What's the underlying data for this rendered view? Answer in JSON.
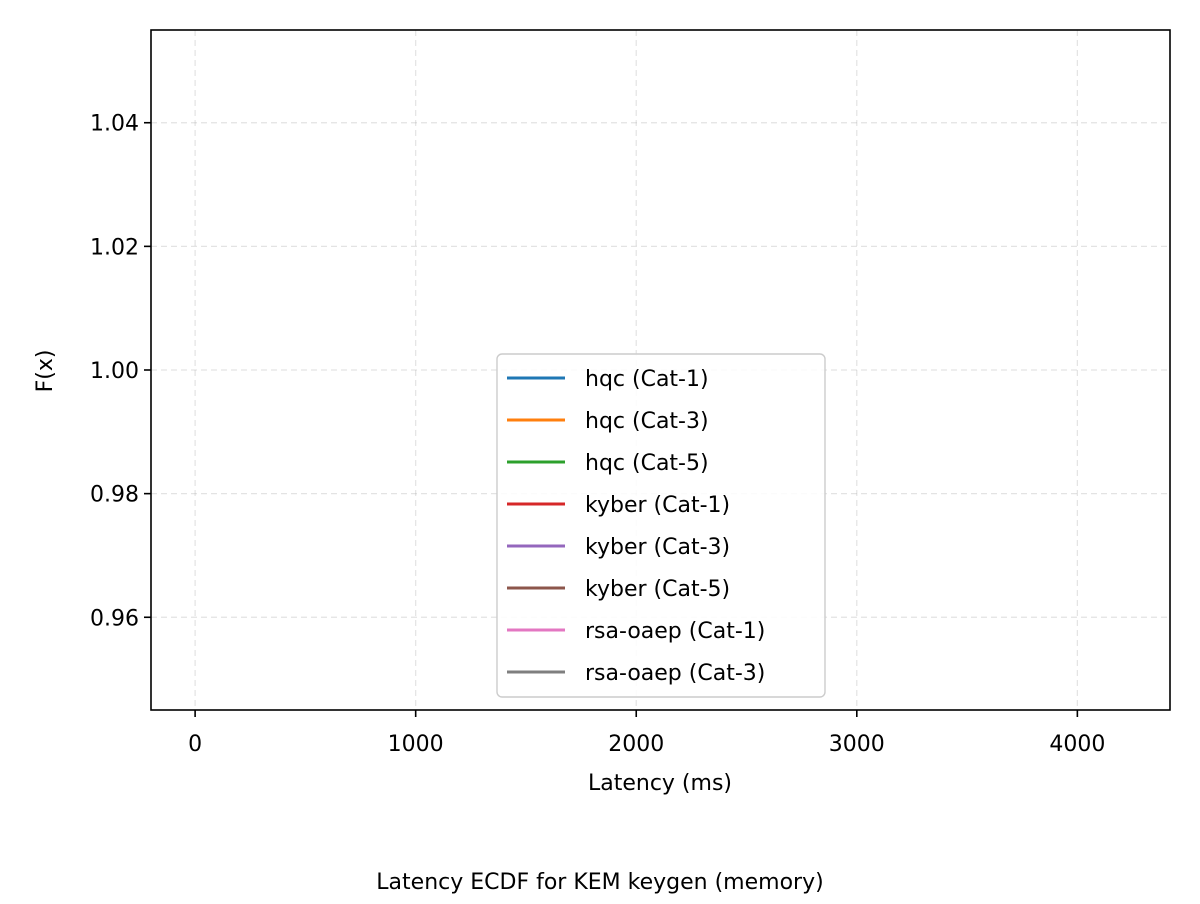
{
  "chart_data": {
    "type": "line",
    "title": "",
    "caption": "Latency ECDF for KEM keygen (memory)",
    "xlabel": "Latency (ms)",
    "ylabel": "F(x)",
    "xlim": [
      -200,
      4420
    ],
    "ylim": [
      0.945,
      1.055
    ],
    "xticks": [
      0,
      1000,
      2000,
      3000,
      4000
    ],
    "yticks": [
      0.96,
      0.98,
      1.0,
      1.02,
      1.04
    ],
    "ytick_labels": [
      "0.96",
      "0.98",
      "1.00",
      "1.02",
      "1.04"
    ],
    "xtick_labels": [
      "0",
      "1000",
      "2000",
      "3000",
      "4000"
    ],
    "grid": true,
    "legend_position": "lower-center",
    "series": [
      {
        "name": "hqc (Cat-1)",
        "color": "#1f77b4",
        "x": [],
        "y": []
      },
      {
        "name": "hqc (Cat-3)",
        "color": "#ff7f0e",
        "x": [],
        "y": []
      },
      {
        "name": "hqc (Cat-5)",
        "color": "#2ca02c",
        "x": [],
        "y": []
      },
      {
        "name": "kyber (Cat-1)",
        "color": "#d62728",
        "x": [],
        "y": []
      },
      {
        "name": "kyber (Cat-3)",
        "color": "#9467bd",
        "x": [],
        "y": []
      },
      {
        "name": "kyber (Cat-5)",
        "color": "#8c564b",
        "x": [],
        "y": []
      },
      {
        "name": "rsa-oaep (Cat-1)",
        "color": "#e377c2",
        "x": [],
        "y": []
      },
      {
        "name": "rsa-oaep (Cat-3)",
        "color": "#7f7f7f",
        "x": [],
        "y": []
      }
    ]
  }
}
